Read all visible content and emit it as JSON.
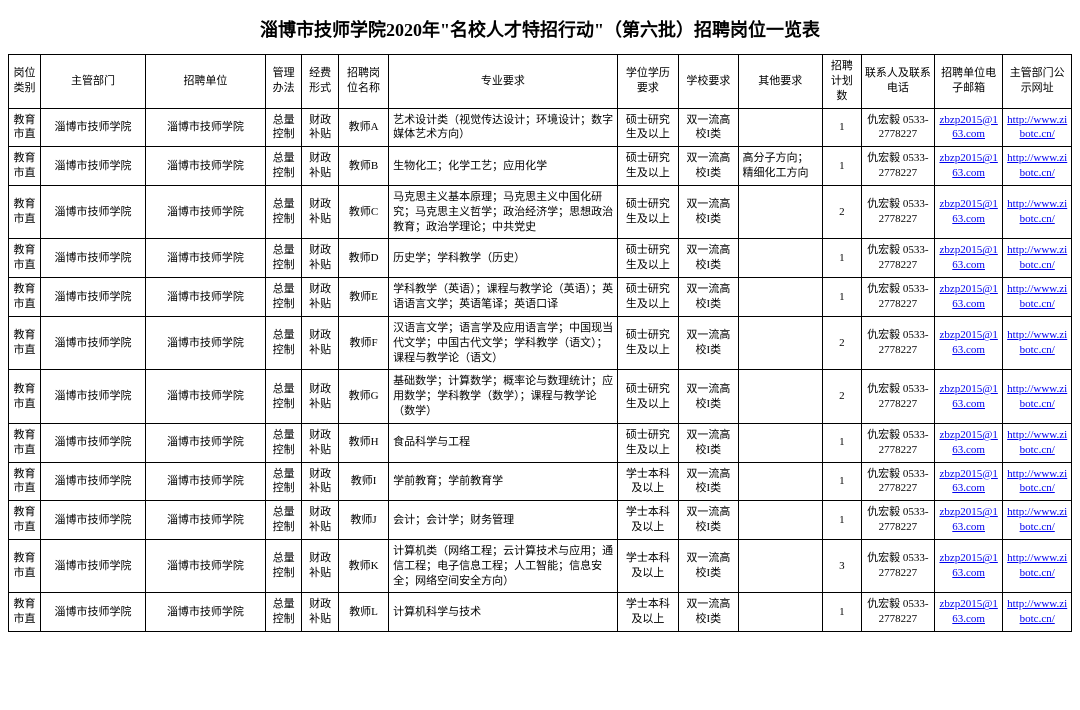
{
  "title": "淄博市技师学院2020年\"名校人才特招行动\"（第六批）招聘岗位一览表",
  "headers": {
    "c1": "岗位类别",
    "c2": "主管部门",
    "c3": "招聘单位",
    "c4": "管理办法",
    "c5": "经费形式",
    "c6": "招聘岗位名称",
    "c7": "专业要求",
    "c8": "学位学历要求",
    "c9": "学校要求",
    "c10": "其他要求",
    "c11": "招聘计划数",
    "c12": "联系人及联系电话",
    "c13": "招聘单位电子邮箱",
    "c14": "主管部门公示网址"
  },
  "common": {
    "category": "教育市直",
    "authority": "淄博市技师学院",
    "unit": "淄博市技师学院",
    "mgmt": "总量控制",
    "funding": "财政补贴",
    "school": "双一流高校I类",
    "contact": "仇宏毅 0533-2778227",
    "email": "zbzp2015@163.com",
    "url": "http://www.zibotc.cn/"
  },
  "rows": [
    {
      "post": "教师A",
      "req": "艺术设计类（视觉传达设计；环境设计；数字媒体艺术方向）",
      "degree": "硕士研究生及以上",
      "other": "",
      "num": "1"
    },
    {
      "post": "教师B",
      "req": "生物化工；化学工艺；应用化学",
      "degree": "硕士研究生及以上",
      "other": "高分子方向；精细化工方向",
      "num": "1"
    },
    {
      "post": "教师C",
      "req": "马克思主义基本原理；马克思主义中国化研究；马克思主义哲学；政治经济学；思想政治教育；政治学理论；中共党史",
      "degree": "硕士研究生及以上",
      "other": "",
      "num": "2"
    },
    {
      "post": "教师D",
      "req": "历史学；学科教学（历史）",
      "degree": "硕士研究生及以上",
      "other": "",
      "num": "1"
    },
    {
      "post": "教师E",
      "req": "学科教学（英语）；课程与教学论（英语）；英语语言文学；英语笔译；英语口译",
      "degree": "硕士研究生及以上",
      "other": "",
      "num": "1"
    },
    {
      "post": "教师F",
      "req": "汉语言文学；语言学及应用语言学；中国现当代文学；中国古代文学；学科教学（语文）；课程与教学论（语文）",
      "degree": "硕士研究生及以上",
      "other": "",
      "num": "2"
    },
    {
      "post": "教师G",
      "req": "基础数学；计算数学；概率论与数理统计；应用数学；学科教学（数学）；课程与教学论（数学）",
      "degree": "硕士研究生及以上",
      "other": "",
      "num": "2"
    },
    {
      "post": "教师H",
      "req": "食品科学与工程",
      "degree": "硕士研究生及以上",
      "other": "",
      "num": "1"
    },
    {
      "post": "教师I",
      "req": "学前教育；学前教育学",
      "degree": "学士本科及以上",
      "other": "",
      "num": "1"
    },
    {
      "post": "教师J",
      "req": "会计；会计学；财务管理",
      "degree": "学士本科及以上",
      "other": "",
      "num": "1"
    },
    {
      "post": "教师K",
      "req": "计算机类（网络工程；云计算技术与应用；通信工程；电子信息工程；人工智能；信息安全；网络空间安全方向）",
      "degree": "学士本科及以上",
      "other": "",
      "num": "3"
    },
    {
      "post": "教师L",
      "req": "计算机科学与技术",
      "degree": "学士本科及以上",
      "other": "",
      "num": "1"
    }
  ]
}
